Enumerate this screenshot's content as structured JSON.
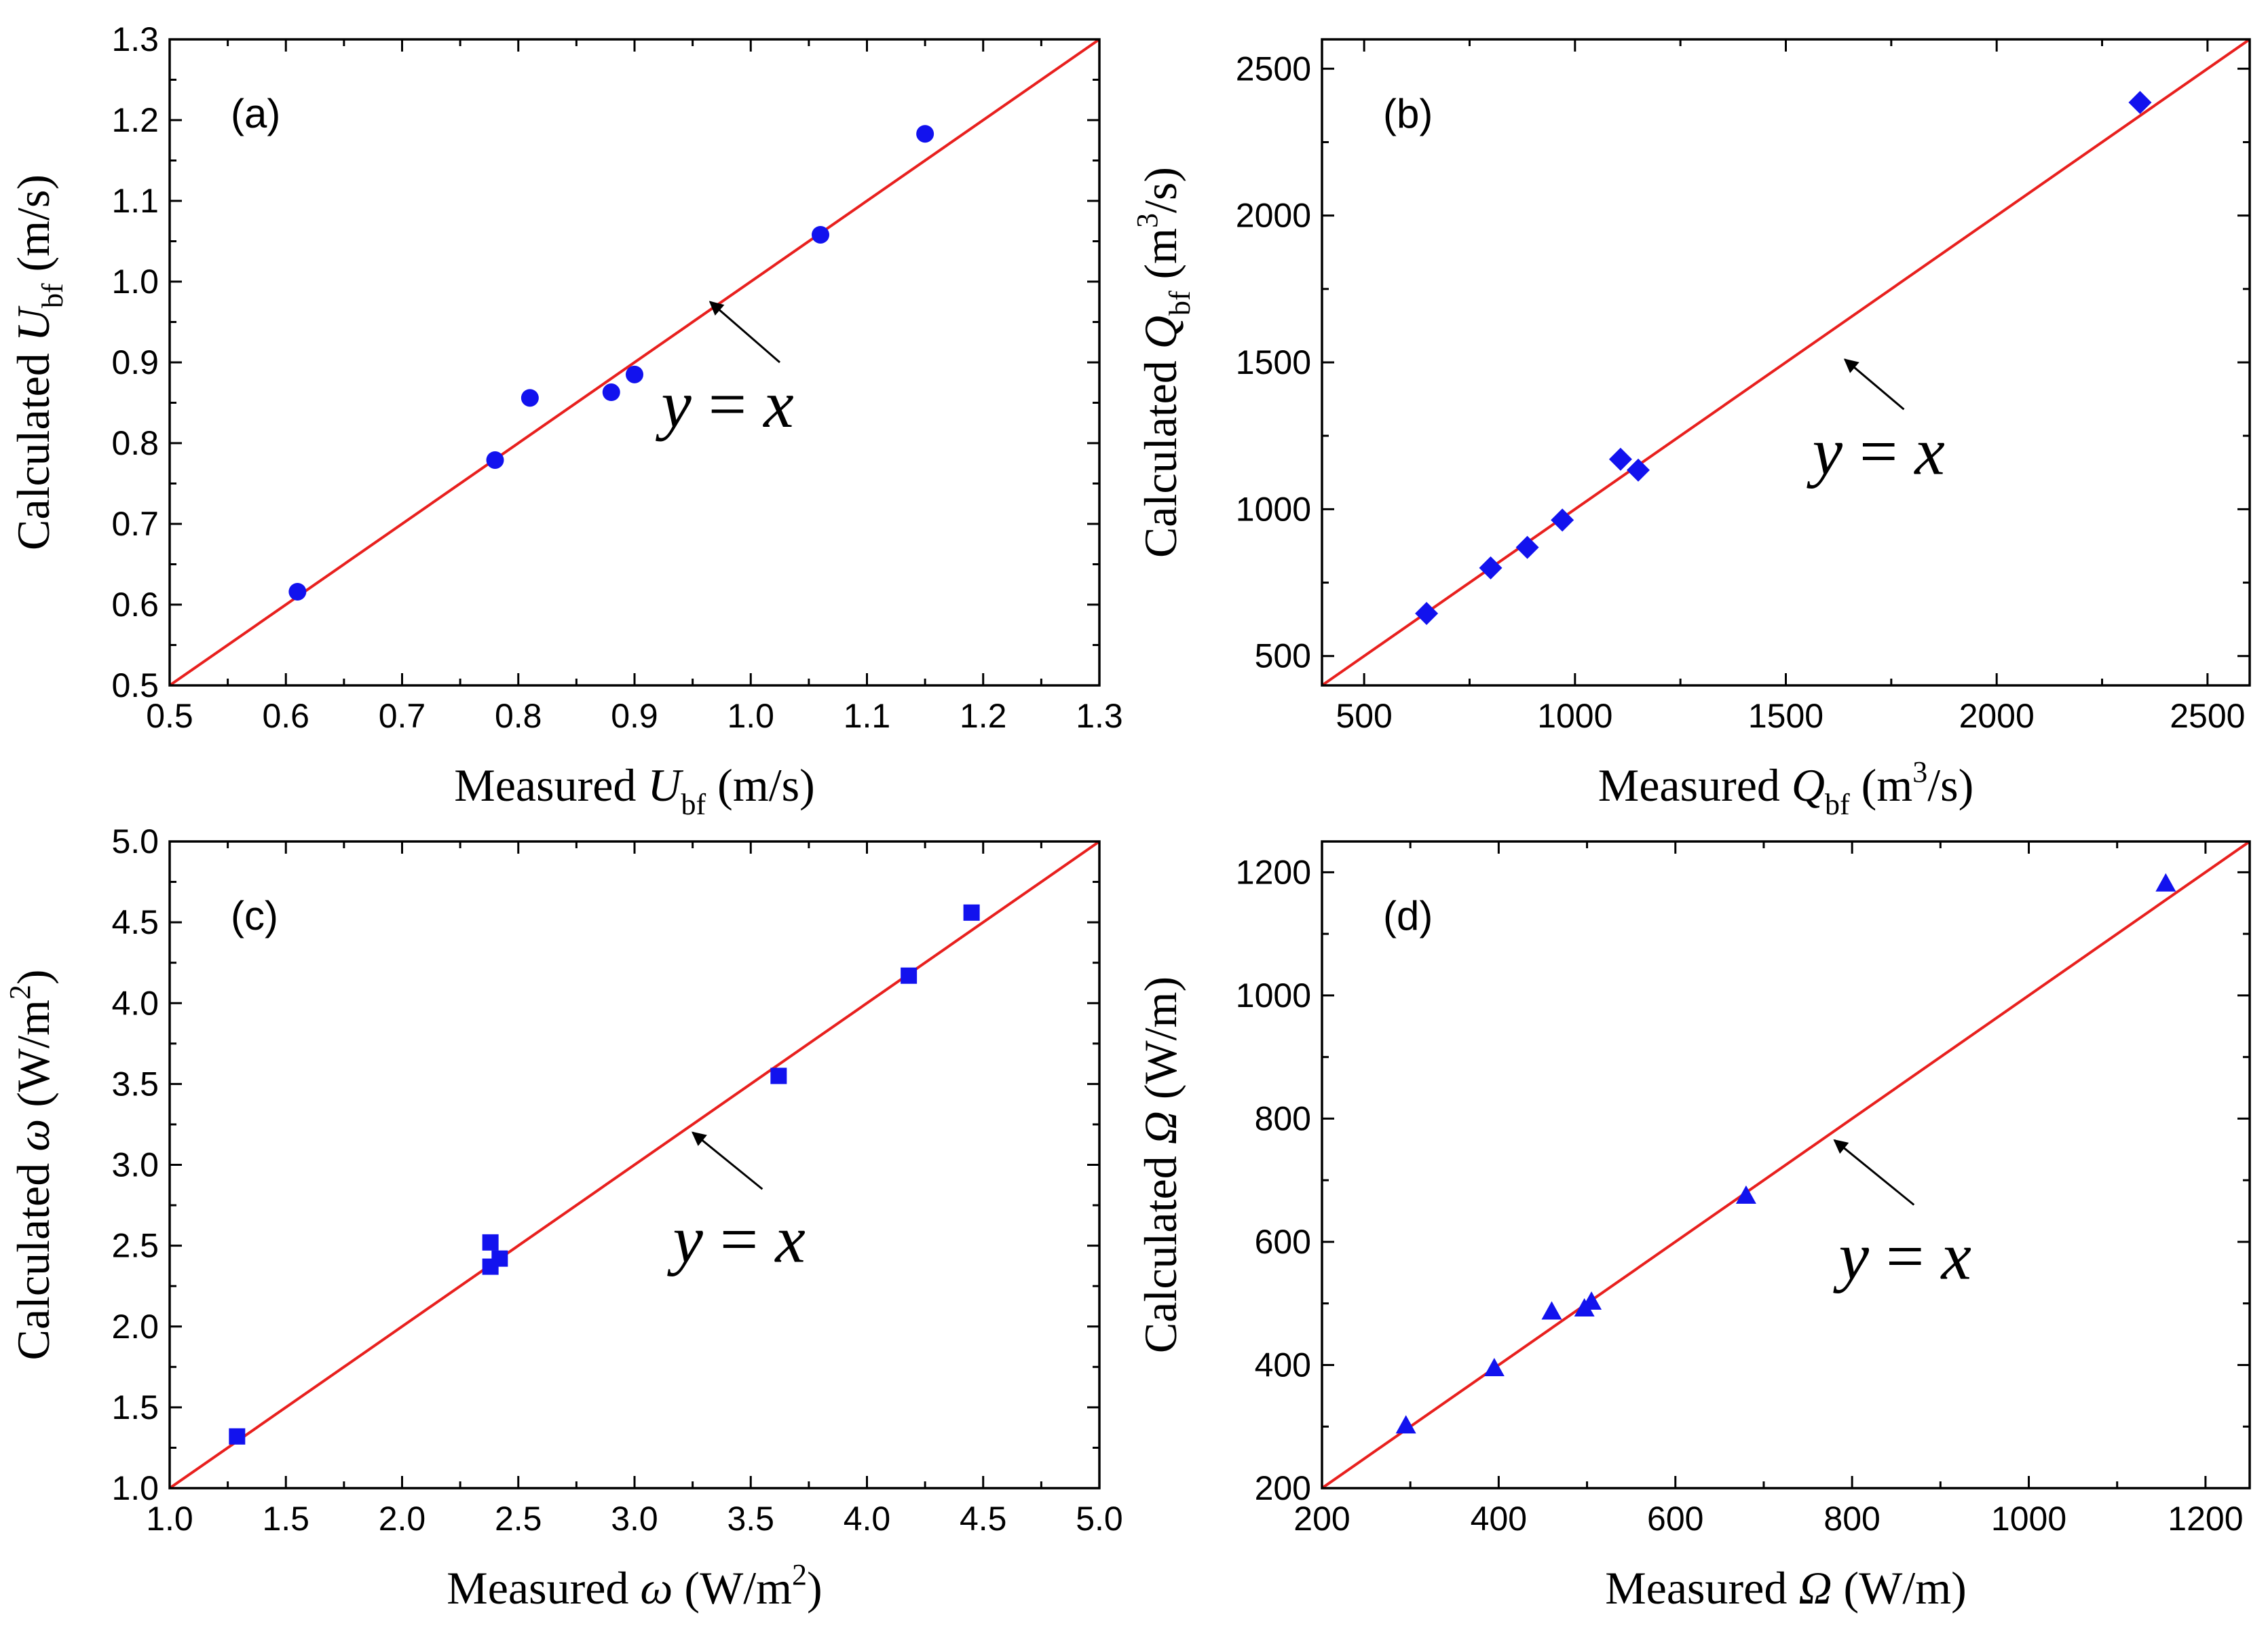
{
  "figure": {
    "line_color": "#e8201e",
    "marker_color": "#1212ee"
  },
  "chart_data": [
    {
      "type": "scatter",
      "panel_label": "(a)",
      "xlabel": {
        "prefix": "Measured ",
        "symbol": "U",
        "sub": "bf",
        "sup": "",
        "unit": " (m/s)"
      },
      "ylabel": {
        "prefix": "Calculated ",
        "symbol": "U",
        "sub": "bf",
        "sup": "",
        "unit": " (m/s)"
      },
      "xlim": [
        0.5,
        1.3
      ],
      "ylim": [
        0.5,
        1.3
      ],
      "xticks": [
        0.5,
        0.6,
        0.7,
        0.8,
        0.9,
        1.0,
        1.1,
        1.2,
        1.3
      ],
      "yticks": [
        0.5,
        0.6,
        0.7,
        0.8,
        0.9,
        1.0,
        1.1,
        1.2,
        1.3
      ],
      "xtick_labels": [
        "0.5",
        "0.6",
        "0.7",
        "0.8",
        "0.9",
        "1.0",
        "1.1",
        "1.2",
        "1.3"
      ],
      "ytick_labels": [
        "0.5",
        "0.6",
        "0.7",
        "0.8",
        "0.9",
        "1.0",
        "1.1",
        "1.2",
        "1.3"
      ],
      "marker": "circle",
      "points": [
        {
          "x": 0.61,
          "y": 0.616
        },
        {
          "x": 0.78,
          "y": 0.779
        },
        {
          "x": 0.81,
          "y": 0.856
        },
        {
          "x": 0.88,
          "y": 0.863
        },
        {
          "x": 0.9,
          "y": 0.885
        },
        {
          "x": 1.06,
          "y": 1.058
        },
        {
          "x": 1.15,
          "y": 1.183
        }
      ],
      "reference_line": "y = x",
      "annotation": {
        "parts": [
          {
            "t": "y",
            "i": true
          },
          {
            "t": " = ",
            "i": false
          },
          {
            "t": "x",
            "i": true
          }
        ],
        "arrow_tip": {
          "x": 0.965,
          "y": 0.975
        },
        "arrow_tail": {
          "x": 1.025,
          "y": 0.9
        },
        "text_anchor": {
          "x": 0.98,
          "y": 0.82
        }
      }
    },
    {
      "type": "scatter",
      "panel_label": "(b)",
      "xlabel": {
        "prefix": "Measured ",
        "symbol": "Q",
        "sub": "bf",
        "sup": "3",
        "unit": " (m",
        "unit_tail": "/s)"
      },
      "ylabel": {
        "prefix": "Calculated ",
        "symbol": "Q",
        "sub": "bf",
        "sup": "3",
        "unit": " (m",
        "unit_tail": "/s)"
      },
      "xlim": [
        400,
        2600
      ],
      "ylim": [
        400,
        2600
      ],
      "xticks": [
        500,
        1000,
        1500,
        2000,
        2500
      ],
      "yticks": [
        500,
        1000,
        1500,
        2000,
        2500
      ],
      "xtick_labels": [
        "500",
        "1000",
        "1500",
        "2000",
        "2500"
      ],
      "ytick_labels": [
        "500",
        "1000",
        "1500",
        "2000",
        "2500"
      ],
      "marker": "diamond",
      "points": [
        {
          "x": 648,
          "y": 645
        },
        {
          "x": 800,
          "y": 800
        },
        {
          "x": 887,
          "y": 870
        },
        {
          "x": 970,
          "y": 963
        },
        {
          "x": 1108,
          "y": 1170
        },
        {
          "x": 1150,
          "y": 1133
        },
        {
          "x": 2340,
          "y": 2385
        }
      ],
      "reference_line": "y = x",
      "annotation": {
        "parts": [
          {
            "t": "y",
            "i": true
          },
          {
            "t": " = ",
            "i": false
          },
          {
            "t": "x",
            "i": true
          }
        ],
        "arrow_tip": {
          "x": 1640,
          "y": 1510
        },
        "arrow_tail": {
          "x": 1780,
          "y": 1340
        },
        "text_anchor": {
          "x": 1720,
          "y": 1120
        }
      }
    },
    {
      "type": "scatter",
      "panel_label": "(c)",
      "xlabel": {
        "prefix": "Measured ",
        "symbol": "ω",
        "sub": "",
        "sup": "2",
        "unit": " (W/m",
        "unit_tail": ")"
      },
      "ylabel": {
        "prefix": "Calculated ",
        "symbol": "ω",
        "sub": "",
        "sup": "2",
        "unit": " (W/m",
        "unit_tail": ")"
      },
      "xlim": [
        1.0,
        5.0
      ],
      "ylim": [
        1.0,
        5.0
      ],
      "xticks": [
        1.0,
        1.5,
        2.0,
        2.5,
        3.0,
        3.5,
        4.0,
        4.5,
        5.0
      ],
      "yticks": [
        1.0,
        1.5,
        2.0,
        2.5,
        3.0,
        3.5,
        4.0,
        4.5,
        5.0
      ],
      "xtick_labels": [
        "1.0",
        "1.5",
        "2.0",
        "2.5",
        "3.0",
        "3.5",
        "4.0",
        "4.5",
        "5.0"
      ],
      "ytick_labels": [
        "1.0",
        "1.5",
        "2.0",
        "2.5",
        "3.0",
        "3.5",
        "4.0",
        "4.5",
        "5.0"
      ],
      "marker": "square",
      "points": [
        {
          "x": 1.29,
          "y": 1.32
        },
        {
          "x": 2.38,
          "y": 2.52
        },
        {
          "x": 2.38,
          "y": 2.37
        },
        {
          "x": 2.42,
          "y": 2.42
        },
        {
          "x": 3.62,
          "y": 3.55
        },
        {
          "x": 4.18,
          "y": 4.17
        },
        {
          "x": 4.45,
          "y": 4.56
        }
      ],
      "reference_line": "y = x",
      "annotation": {
        "parts": [
          {
            "t": "y",
            "i": true
          },
          {
            "t": " = ",
            "i": false
          },
          {
            "t": "x",
            "i": true
          }
        ],
        "arrow_tip": {
          "x": 3.25,
          "y": 3.2
        },
        "arrow_tail": {
          "x": 3.55,
          "y": 2.85
        },
        "text_anchor": {
          "x": 3.45,
          "y": 2.4
        }
      }
    },
    {
      "type": "scatter",
      "panel_label": "(d)",
      "xlabel": {
        "prefix": "Measured ",
        "symbol": "Ω",
        "sub": "",
        "sup": "",
        "unit": " (W/m)"
      },
      "ylabel": {
        "prefix": "Calculated ",
        "symbol": "Ω",
        "sub": "",
        "sup": "",
        "unit": " (W/m)"
      },
      "xlim": [
        200,
        1250
      ],
      "ylim": [
        200,
        1250
      ],
      "xticks": [
        200,
        400,
        600,
        800,
        1000,
        1200
      ],
      "yticks": [
        200,
        400,
        600,
        800,
        1000,
        1200
      ],
      "xtick_labels": [
        "200",
        "400",
        "600",
        "800",
        "1000",
        "1200"
      ],
      "ytick_labels": [
        "200",
        "400",
        "600",
        "800",
        "1000",
        "1200"
      ],
      "marker": "triangle",
      "points": [
        {
          "x": 295,
          "y": 302
        },
        {
          "x": 395,
          "y": 395
        },
        {
          "x": 460,
          "y": 487
        },
        {
          "x": 497,
          "y": 492
        },
        {
          "x": 505,
          "y": 503
        },
        {
          "x": 680,
          "y": 675
        },
        {
          "x": 1155,
          "y": 1182
        }
      ],
      "reference_line": "y = x",
      "annotation": {
        "parts": [
          {
            "t": "y",
            "i": true
          },
          {
            "t": " = ",
            "i": false
          },
          {
            "t": "x",
            "i": true
          }
        ],
        "arrow_tip": {
          "x": 780,
          "y": 765
        },
        "arrow_tail": {
          "x": 870,
          "y": 660
        },
        "text_anchor": {
          "x": 860,
          "y": 540
        }
      }
    }
  ]
}
